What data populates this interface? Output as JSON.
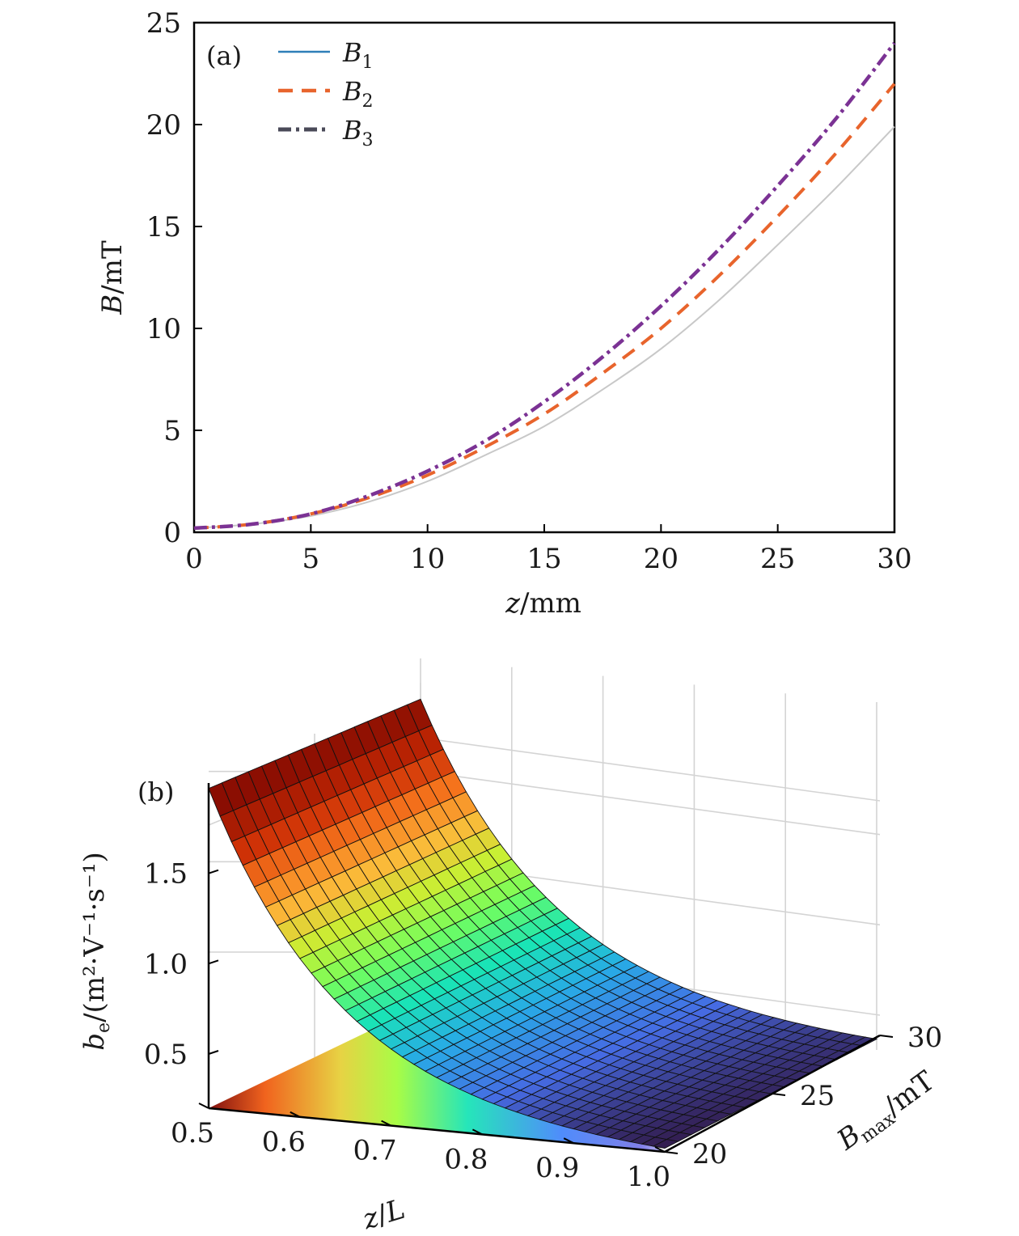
{
  "chart_data": [
    {
      "panel": "(a)",
      "type": "line",
      "xlabel": "z/mm",
      "ylabel": "B/mT",
      "xlim": [
        0,
        30
      ],
      "ylim": [
        0,
        25
      ],
      "xticks": [
        "0",
        "5",
        "10",
        "15",
        "20",
        "25",
        "30"
      ],
      "yticks": [
        "0",
        "5",
        "10",
        "15",
        "20",
        "25"
      ],
      "grid": false,
      "legend_placement": "top-left",
      "x": [
        0,
        2.5,
        5,
        7.5,
        10,
        12.5,
        15,
        17.5,
        20,
        22.5,
        25,
        27.5,
        30
      ],
      "series": [
        {
          "name": "B1",
          "style": "solid",
          "color": "#c8c8c8",
          "legend_color": "#2f7fb8",
          "values": [
            0.2,
            0.4,
            0.8,
            1.5,
            2.5,
            3.8,
            5.2,
            7.0,
            9.0,
            11.4,
            14.1,
            16.9,
            19.9
          ]
        },
        {
          "name": "B2",
          "style": "dashed",
          "color": "#e8642c",
          "legend_color": "#e8642c",
          "values": [
            0.2,
            0.4,
            0.9,
            1.7,
            2.8,
            4.2,
            5.8,
            7.8,
            10.0,
            12.6,
            15.5,
            18.6,
            22.0
          ]
        },
        {
          "name": "B3",
          "style": "dashdot",
          "color": "#7b3294",
          "legend_color": "#4a4a58",
          "values": [
            0.2,
            0.4,
            0.9,
            1.8,
            3.0,
            4.5,
            6.4,
            8.6,
            11.1,
            13.9,
            17.0,
            20.3,
            24.0
          ]
        }
      ],
      "legend": [
        {
          "label": "B",
          "sub": "1"
        },
        {
          "label": "B",
          "sub": "2"
        },
        {
          "label": "B",
          "sub": "3"
        }
      ]
    },
    {
      "panel": "(b)",
      "type": "surface",
      "xlabel": "z/L",
      "ylabel": "Bmax/mT",
      "ylabel_main": "B",
      "ylabel_sub": "max",
      "ylabel_unit": "/mT",
      "zlabel_main": "b",
      "zlabel_sub": "e",
      "zlabel_unit": "/(m²·V⁻¹·s⁻¹)",
      "xlim": [
        0.5,
        1.0
      ],
      "ylim": [
        20,
        30
      ],
      "zlim": [
        0.2,
        2.0
      ],
      "xticks": [
        "0.5",
        "0.6",
        "0.7",
        "0.8",
        "0.9",
        "1.0"
      ],
      "yticks": [
        "20",
        "25",
        "30"
      ],
      "zticks": [
        "0.5",
        "1.0",
        "1.5"
      ],
      "colormap": "turbo",
      "surface_corners": {
        "z0.5_B20": 1.97,
        "z0.5_B30": 1.9,
        "z1.0_B20": 0.22,
        "z1.0_B30": 0.26
      }
    }
  ]
}
